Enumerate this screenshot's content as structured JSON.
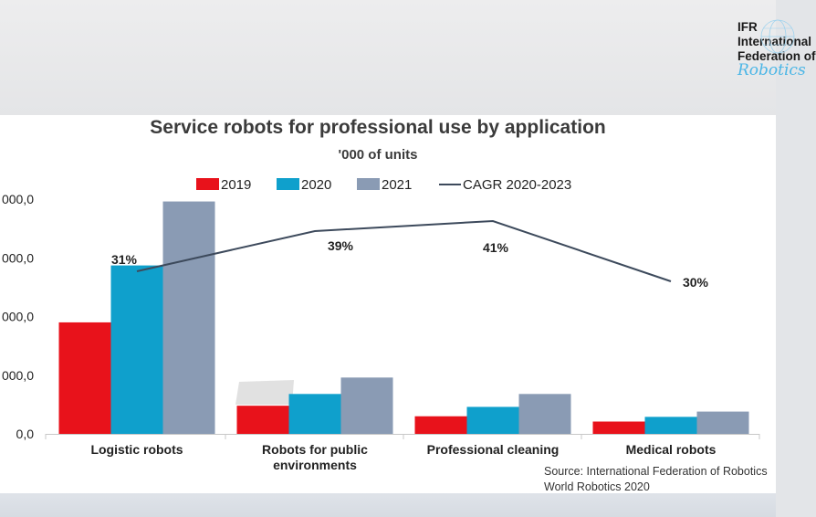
{
  "logo": {
    "lines": [
      "IFR",
      "International",
      "Federation of",
      "Robotics"
    ]
  },
  "chart_data": {
    "type": "bar",
    "title": "Service robots for professional use by application",
    "subtitle": "'000 of units",
    "categories": [
      [
        "Logistic robots"
      ],
      [
        "Robots for public",
        "environments"
      ],
      [
        "Professional cleaning"
      ],
      [
        "Medical robots"
      ]
    ],
    "series": [
      {
        "name": "2019",
        "color": "#e8121b",
        "values": [
          190,
          48,
          30,
          21
        ]
      },
      {
        "name": "2020",
        "color": "#0fa0cc",
        "values": [
          287,
          68,
          46,
          29
        ]
      },
      {
        "name": "2021",
        "color": "#8a9bb4",
        "values": [
          396,
          96,
          68,
          38
        ]
      }
    ],
    "line_series": {
      "name": "CAGR 2020-2023",
      "color": "#3d4a5c",
      "labels": [
        "31%",
        "39%",
        "41%",
        "30%"
      ]
    },
    "y_ticks": [
      "0,0",
      "000,0",
      "000,0",
      "000,0",
      "000,0"
    ],
    "y_tick_values": [
      0,
      100,
      200,
      300,
      400
    ],
    "ylim": [
      0,
      400
    ],
    "grid": false,
    "legend_position": "top"
  },
  "source": {
    "line1": "Source: International Federation of Robotics",
    "line2": "World Robotics 2020"
  }
}
